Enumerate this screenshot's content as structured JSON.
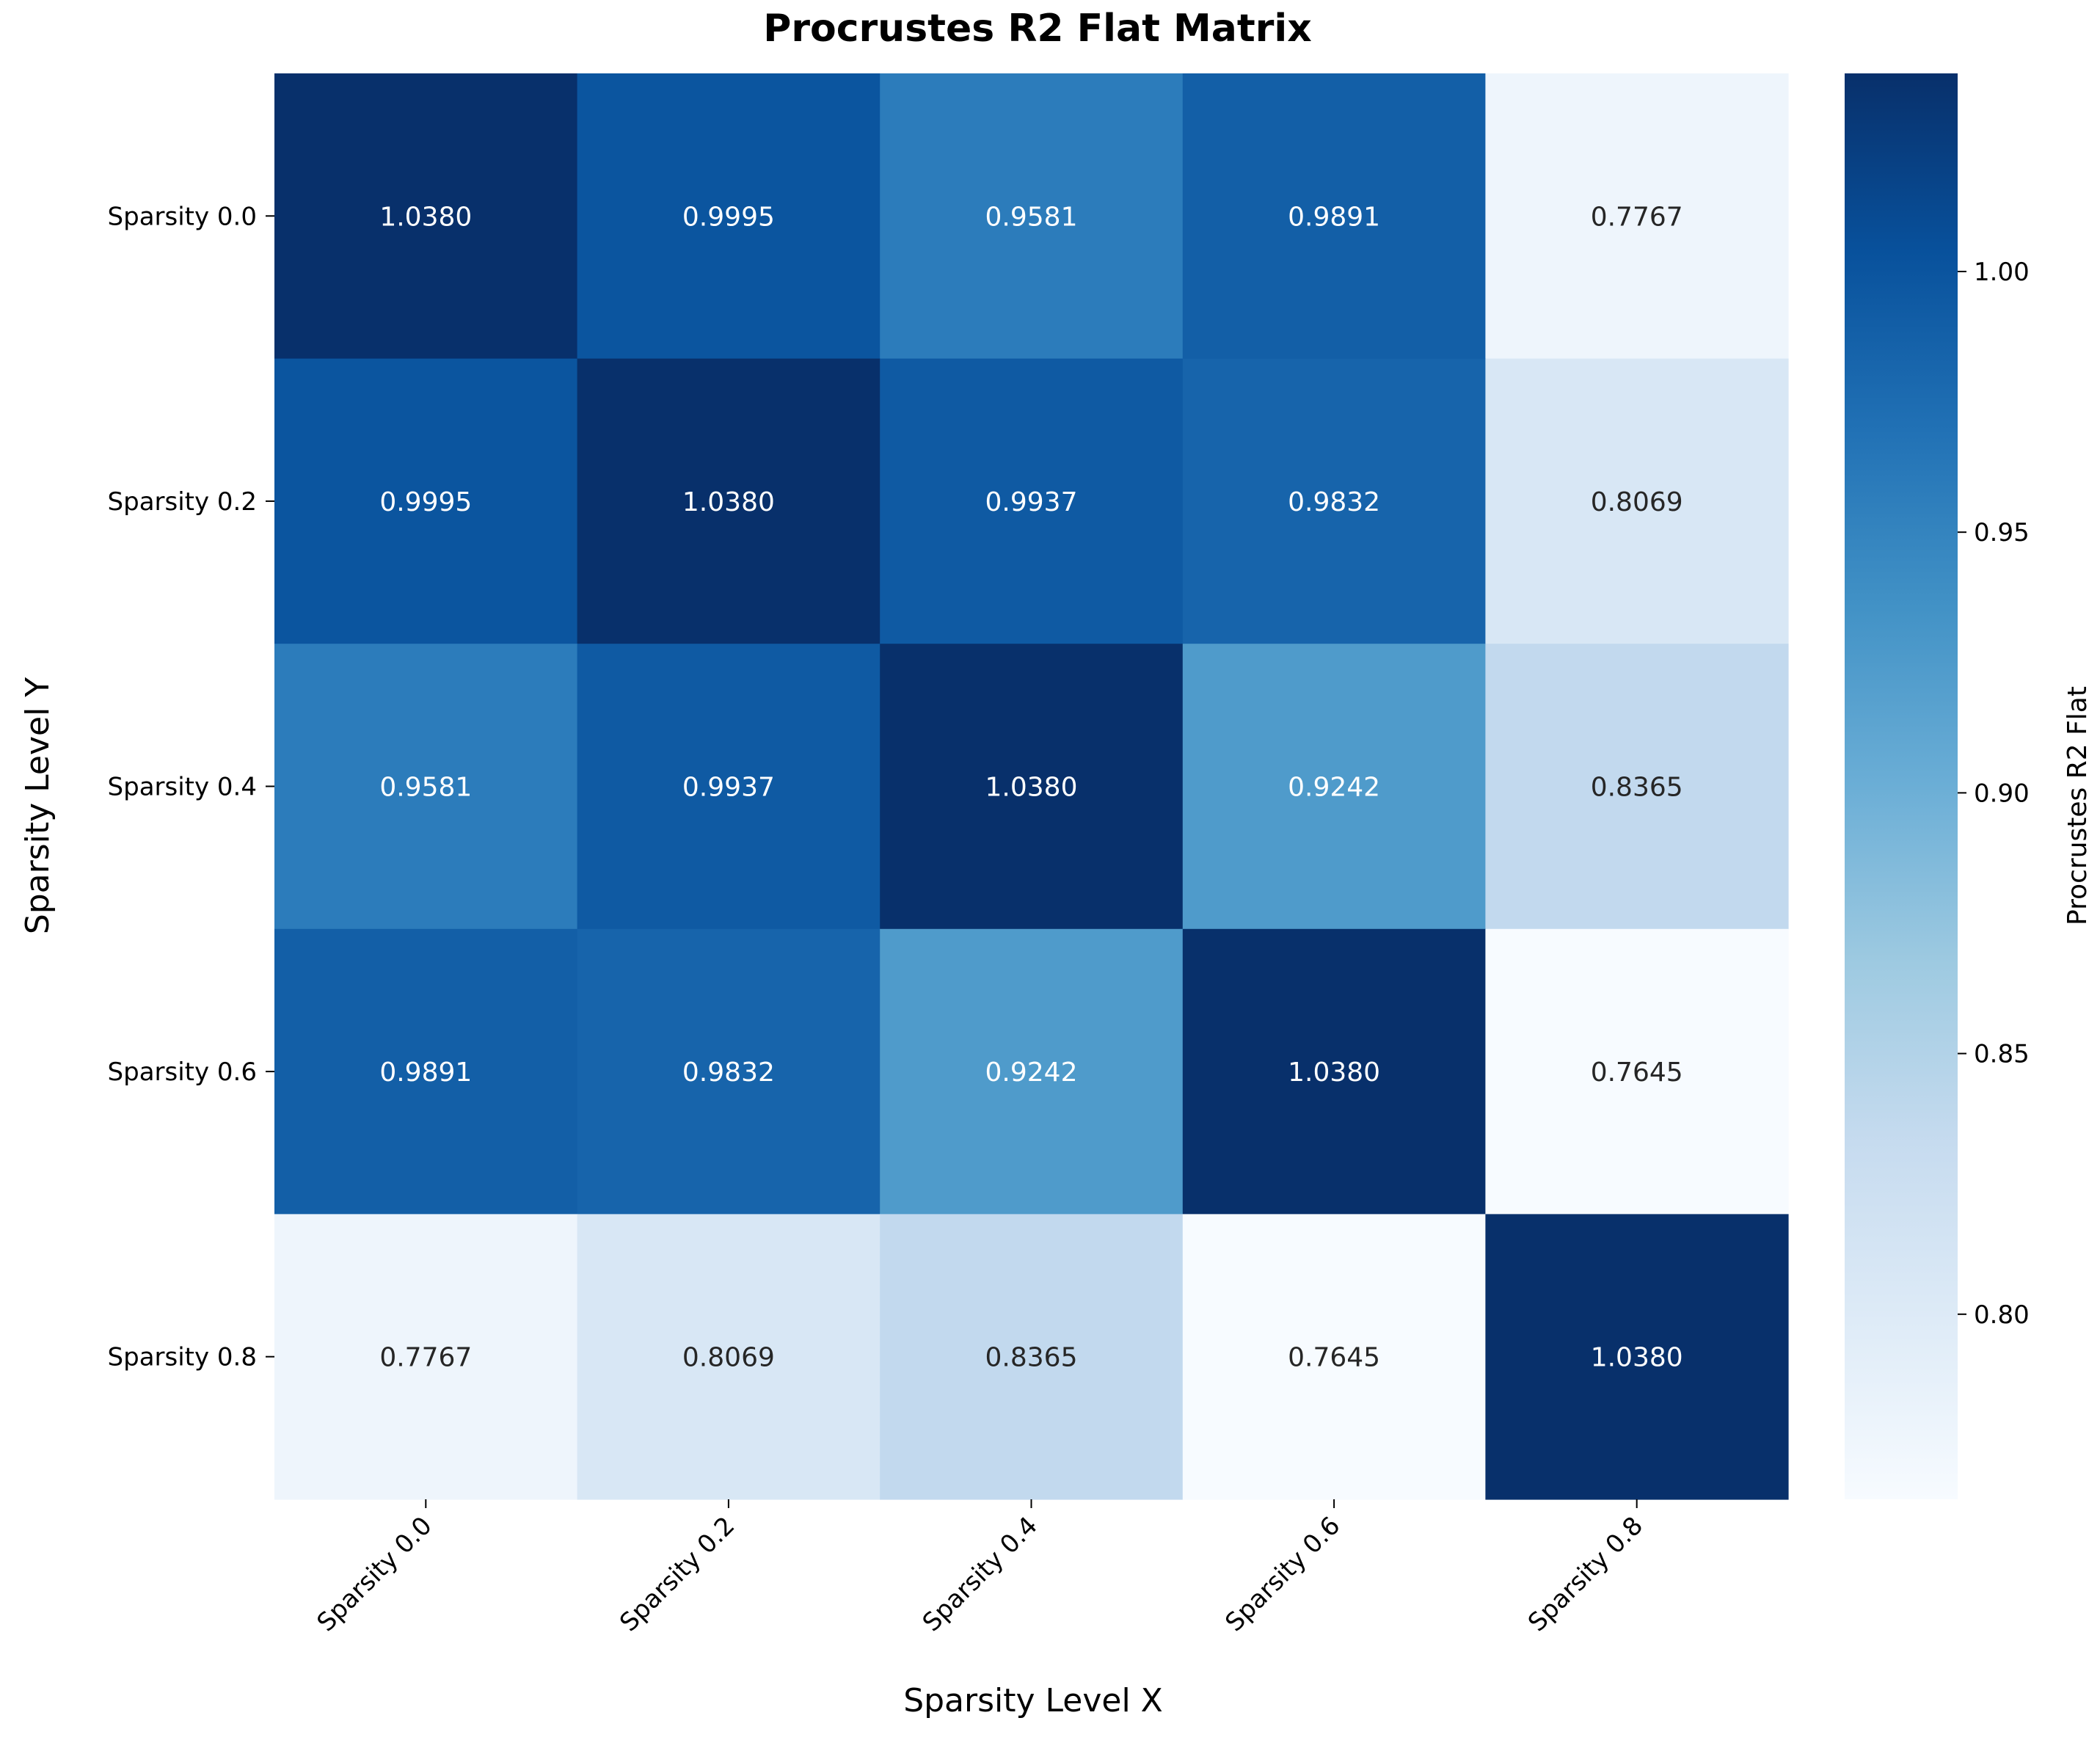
{
  "chart_data": {
    "type": "heatmap",
    "title": "Procrustes R2 Flat Matrix",
    "xlabel": "Sparsity Level X",
    "ylabel": "Sparsity Level Y",
    "x_categories": [
      "Sparsity 0.0",
      "Sparsity 0.2",
      "Sparsity 0.4",
      "Sparsity 0.6",
      "Sparsity 0.8"
    ],
    "y_categories": [
      "Sparsity 0.0",
      "Sparsity 0.2",
      "Sparsity 0.4",
      "Sparsity 0.6",
      "Sparsity 0.8"
    ],
    "values": [
      [
        1.038,
        0.9995,
        0.9581,
        0.9891,
        0.7767
      ],
      [
        0.9995,
        1.038,
        0.9937,
        0.9832,
        0.8069
      ],
      [
        0.9581,
        0.9937,
        1.038,
        0.9242,
        0.8365
      ],
      [
        0.9891,
        0.9832,
        0.9242,
        1.038,
        0.7645
      ],
      [
        0.7767,
        0.8069,
        0.8365,
        0.7645,
        1.038
      ]
    ],
    "cell_labels": [
      [
        "1.0380",
        "0.9995",
        "0.9581",
        "0.9891",
        "0.7767"
      ],
      [
        "0.9995",
        "1.0380",
        "0.9937",
        "0.9832",
        "0.8069"
      ],
      [
        "0.9581",
        "0.9937",
        "1.0380",
        "0.9242",
        "0.8365"
      ],
      [
        "0.9891",
        "0.9832",
        "0.9242",
        "1.0380",
        "0.7645"
      ],
      [
        "0.7767",
        "0.8069",
        "0.8365",
        "0.7645",
        "1.0380"
      ]
    ],
    "colormap": "Blues",
    "colorbar": {
      "label": "Procrustes R2 Flat",
      "range": [
        0.7645,
        1.038
      ],
      "ticks": [
        0.8,
        0.85,
        0.9,
        0.95,
        1.0
      ],
      "tick_labels": [
        "0.80",
        "0.85",
        "0.90",
        "0.95",
        "1.00"
      ]
    },
    "grid": false,
    "legend": "none"
  }
}
